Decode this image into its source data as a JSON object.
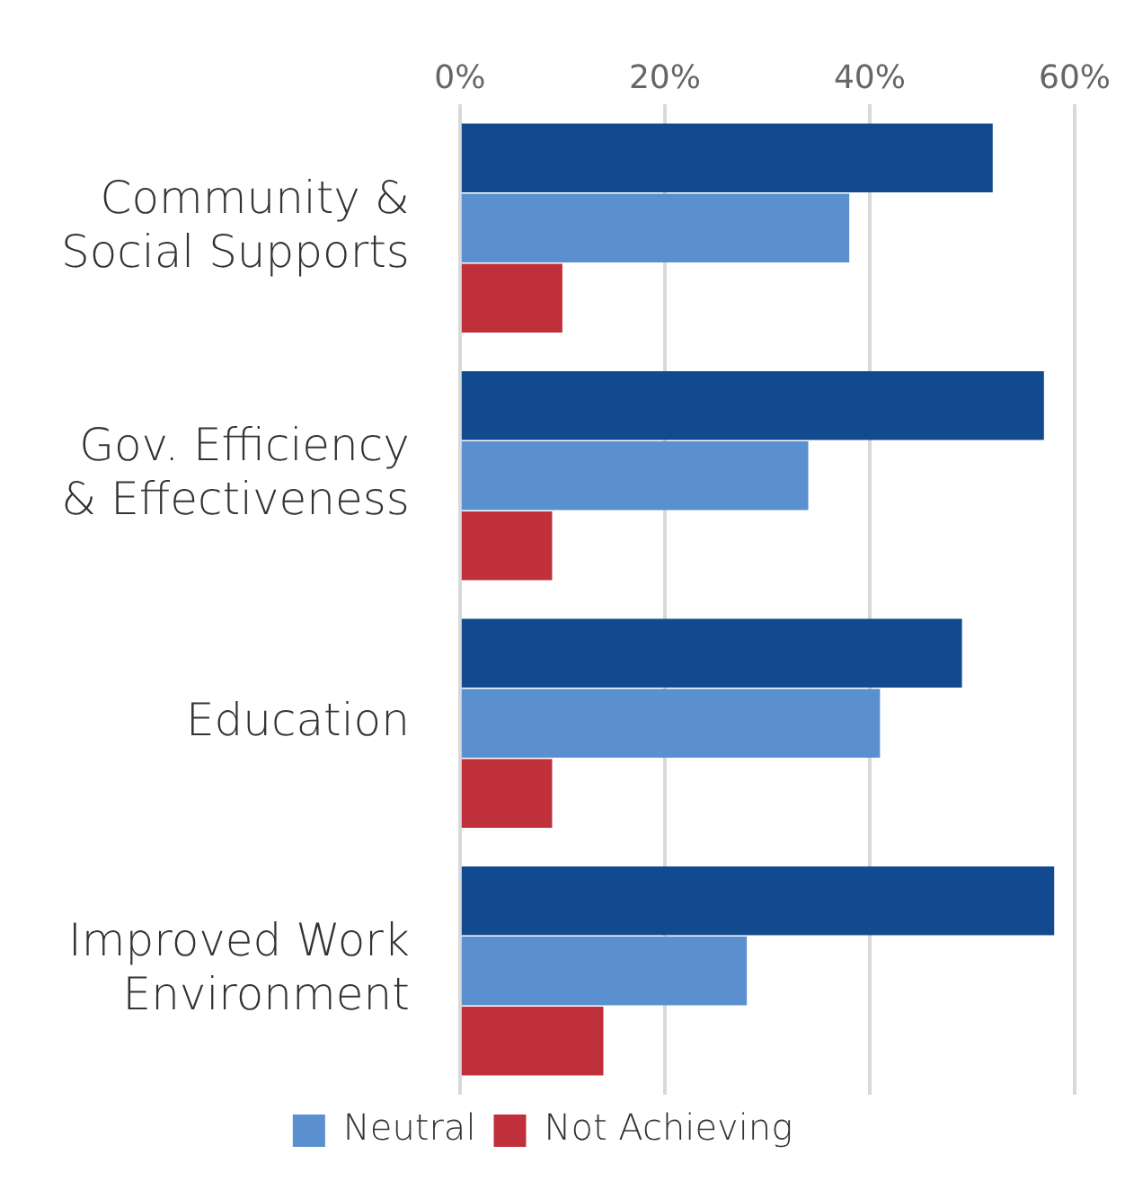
{
  "chart_data": {
    "type": "bar",
    "orientation": "horizontal",
    "categories": [
      [
        "Community &",
        "Social Supports"
      ],
      [
        "Gov. Efficiency",
        "& Effectiveness"
      ],
      [
        "Education"
      ],
      [
        "Improved Work",
        "Environment"
      ]
    ],
    "series": [
      {
        "color": "#114a8f",
        "values": [
          52,
          57,
          49,
          58
        ]
      },
      {
        "name": "Neutral",
        "color": "#5a90cf",
        "values": [
          38,
          34,
          41,
          28
        ]
      },
      {
        "name": "Not Achieving",
        "color": "#c0303a",
        "values": [
          10,
          9,
          9,
          14
        ]
      }
    ],
    "xlim": [
      0,
      60
    ],
    "xticks": [
      {
        "value": 0,
        "label": "0%"
      },
      {
        "value": 20,
        "label": "20%"
      },
      {
        "value": 40,
        "label": "40%"
      },
      {
        "value": 60,
        "label": "60%"
      }
    ],
    "grid": "x",
    "legend": "bottom"
  }
}
